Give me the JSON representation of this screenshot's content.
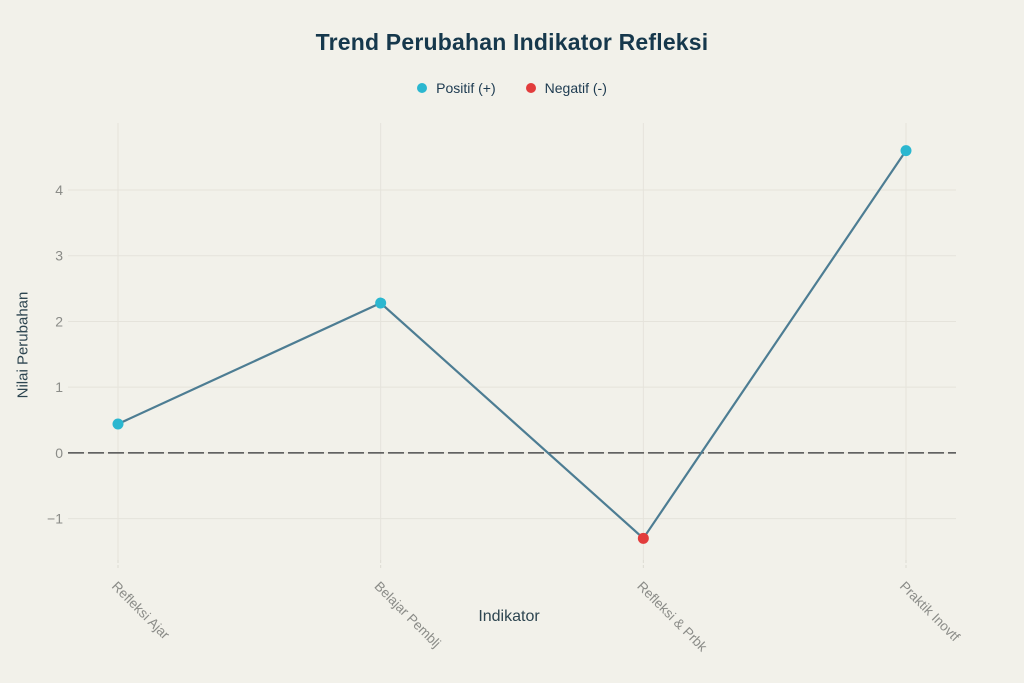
{
  "title": "Trend Perubahan Indikator Refleksi",
  "chart_data": {
    "type": "line",
    "title": "Trend Perubahan Indikator Refleksi",
    "xlabel": "Indikator",
    "ylabel": "Nilai Perubahan",
    "categories": [
      "Refleksi Ajar",
      "Belajar Pemblj",
      "Refleksi & Prbk",
      "Praktik Inovtf"
    ],
    "values": [
      0.44,
      2.28,
      -1.3,
      4.6
    ],
    "point_colors": [
      "#2bb7d0",
      "#2bb7d0",
      "#e23c3c",
      "#2bb7d0"
    ],
    "line_color": "#4d7d93",
    "y_ticks": [
      -1,
      0,
      1,
      2,
      3,
      4
    ],
    "ylim": [
      -1.63,
      5.02
    ],
    "grid": true,
    "legend_position": "top",
    "legend": [
      {
        "label": "Positif (+)",
        "color": "#2bb7d0"
      },
      {
        "label": "Negatif (-)",
        "color": "#e23c3c"
      }
    ]
  },
  "style": {
    "background": "#f2f1ea",
    "grid_color": "#e5e3db",
    "tick_dash_color": "#dcdad2",
    "zero_line_color": "#4f4f4f",
    "tick_label_color": "#8b8c88",
    "title_color": "#16384c",
    "axis_title_color": "#2d4550",
    "legend_text_color": "#1d3a50"
  }
}
